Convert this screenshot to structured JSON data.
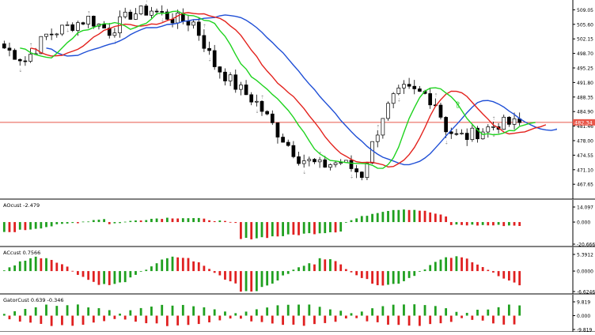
{
  "chart_data": [
    {
      "type": "candlestick",
      "yaxis_ticks": [
        "509.05",
        "505.60",
        "502.15",
        "498.70",
        "495.25",
        "491.80",
        "488.35",
        "484.90",
        "481.46",
        "478.00",
        "474.55",
        "471.10",
        "467.65"
      ],
      "current_price_label": "482.34",
      "current_price": 482.34,
      "ylim": [
        464.5,
        511.0
      ],
      "bar_count": 99,
      "candles_sample": [
        {
          "i": 0,
          "o": 501.5,
          "h": 503.2,
          "l": 497.8,
          "c": 499.4
        },
        {
          "i": 40,
          "o": 472.8,
          "h": 480.0,
          "l": 467.9,
          "c": 474.1
        },
        {
          "i": 55,
          "o": 471.0,
          "h": 475.0,
          "l": 465.3,
          "c": 467.5
        },
        {
          "i": 75,
          "o": 488.4,
          "h": 492.0,
          "l": 484.6,
          "c": 489.3
        },
        {
          "i": 98,
          "o": 481.8,
          "h": 482.4,
          "l": 481.1,
          "c": 482.0
        }
      ],
      "series": [
        {
          "id": "blue-line",
          "color": "#1f4fd6"
        },
        {
          "id": "red-line",
          "color": "#e3211c"
        },
        {
          "id": "lime-line",
          "color": "#1fd31f"
        }
      ],
      "arrow_marker": {
        "bar": 86,
        "price": 485.8,
        "color": "#22c422"
      }
    },
    {
      "type": "bar",
      "title": "AOcust -2.479",
      "yaxis_ticks": [
        "14.097",
        "0.000",
        "-20.666"
      ],
      "ylim": [
        -20.666,
        14.097
      ]
    },
    {
      "type": "bar",
      "title": "ACcust 0.7566",
      "yaxis_ticks": [
        "5.3912",
        "0.0000",
        "-6.6246"
      ],
      "ylim": [
        -6.6246,
        5.3912
      ]
    },
    {
      "type": "bar",
      "title": "GatorCust 0.639 -0.346",
      "yaxis_ticks": [
        "9.819",
        "0.000",
        "-9.819"
      ],
      "ylim": [
        -9.819,
        9.819
      ]
    }
  ],
  "colors": {
    "bull": "#20a020",
    "bear": "#e02020",
    "price_line": "#e8574a",
    "grid_axis": "#000000",
    "price_label_bg": "#e8574a"
  }
}
